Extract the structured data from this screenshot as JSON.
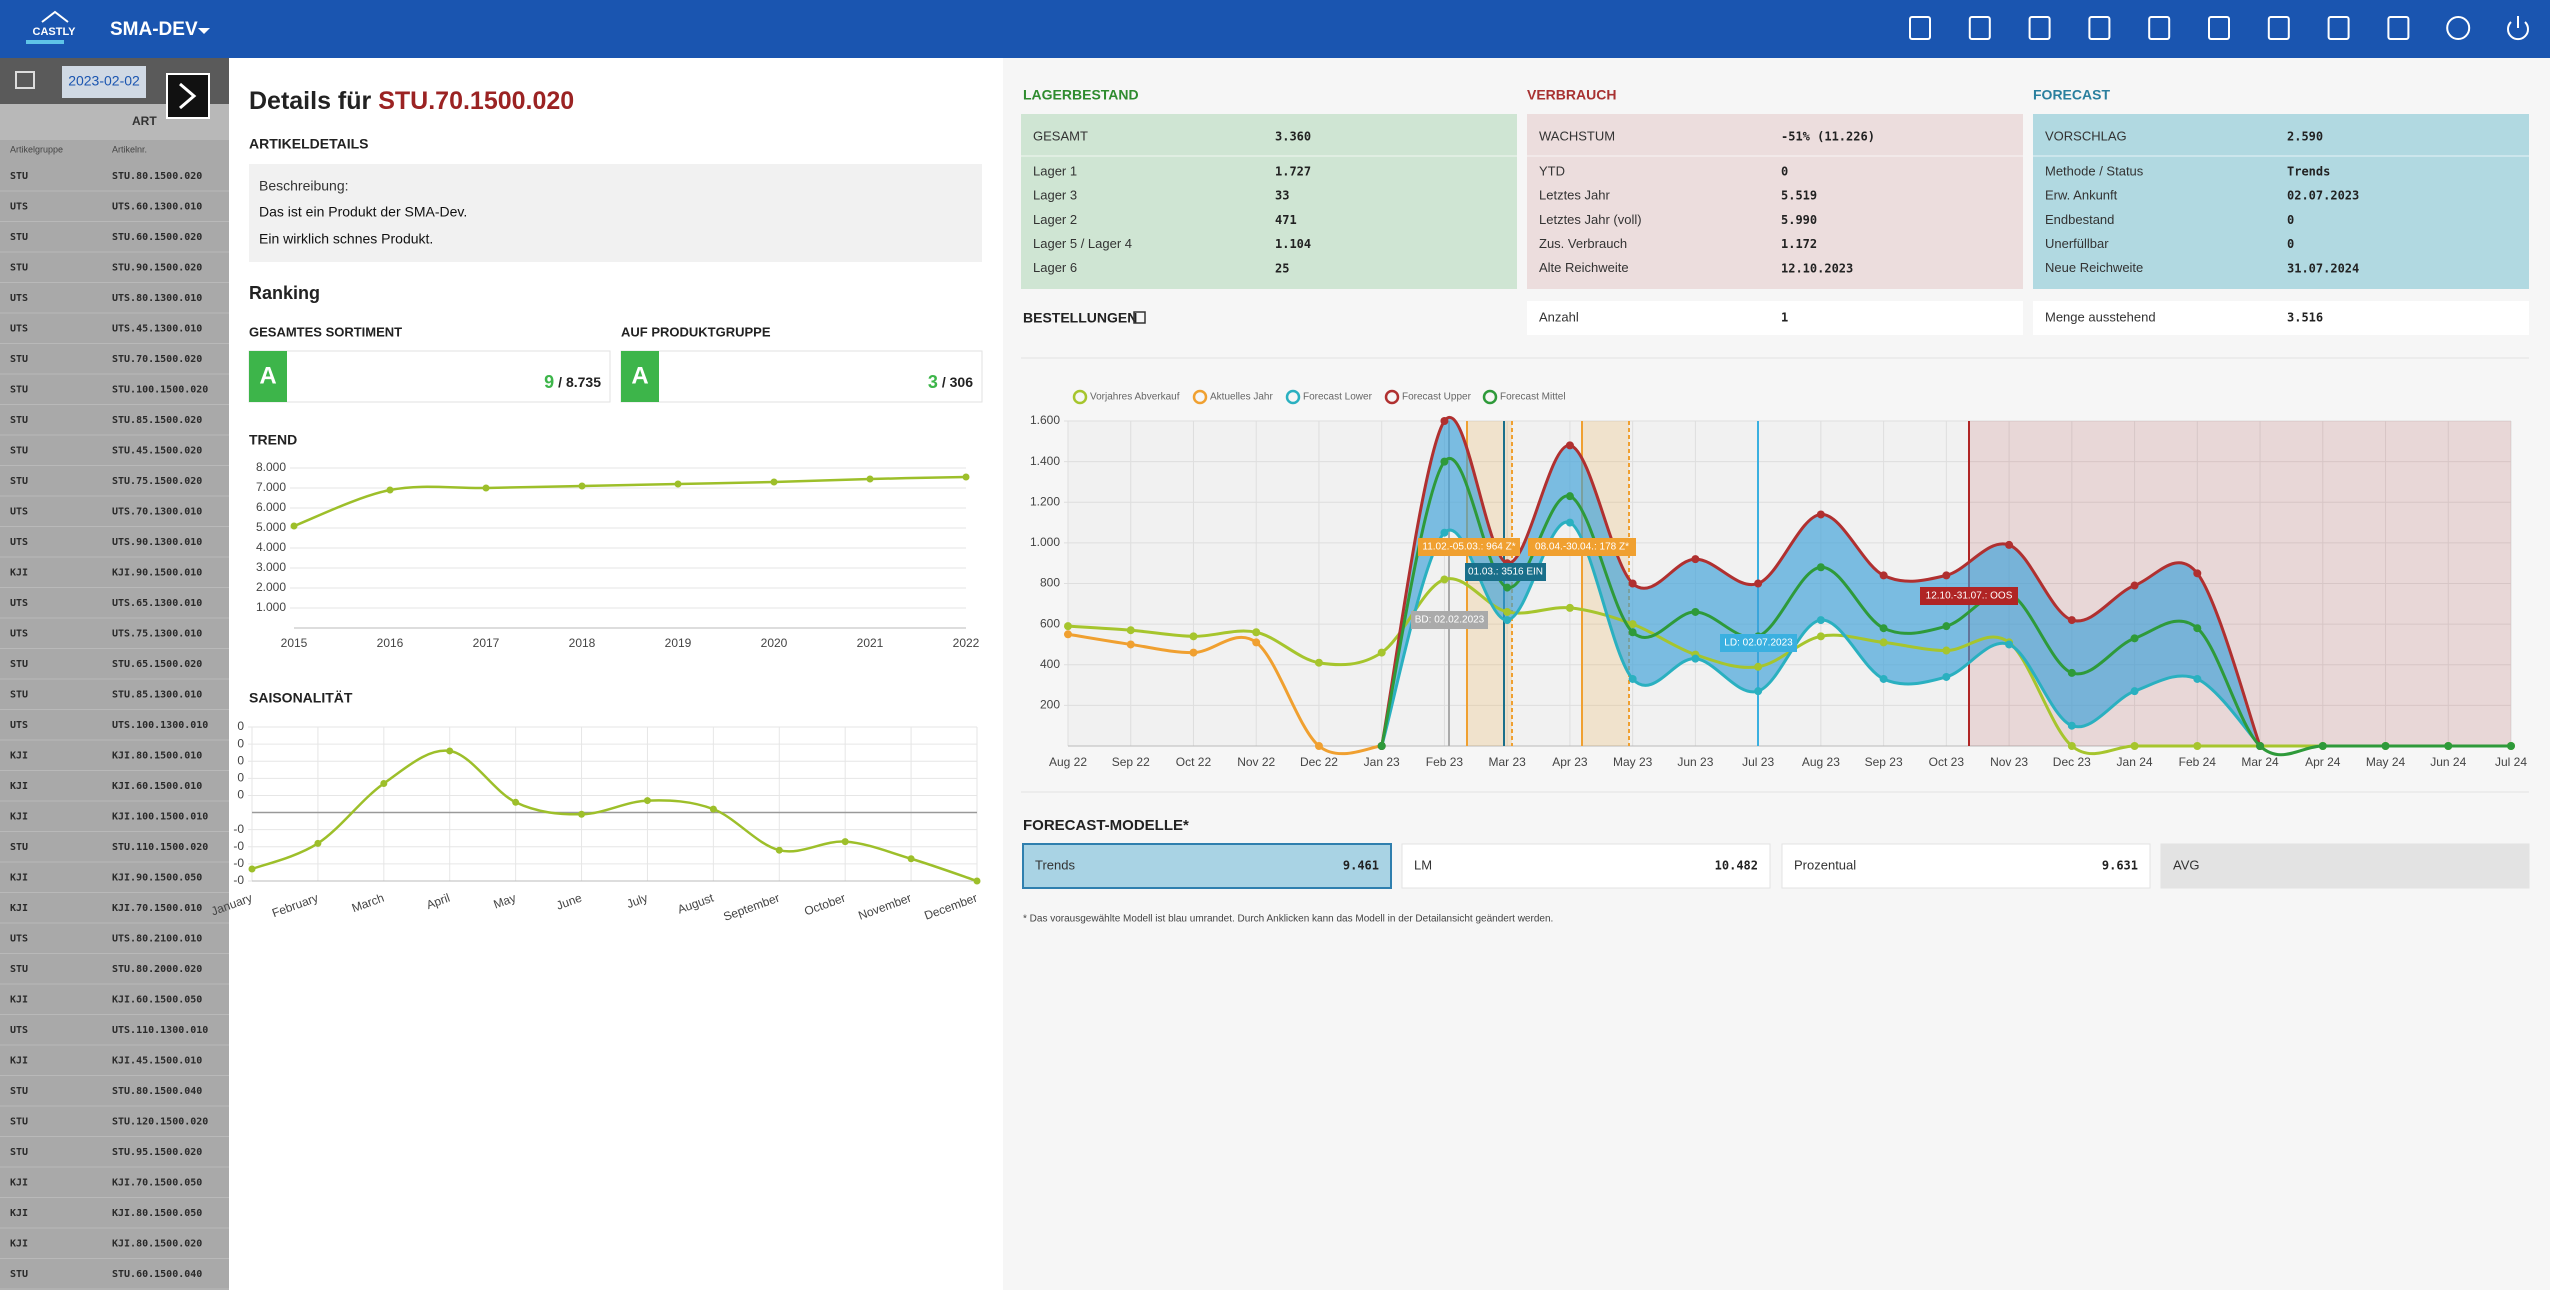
{
  "header": {
    "logo": "CASTLY",
    "environment": "SMA-DEV"
  },
  "sidebar": {
    "date": "2023-02-02",
    "heading": "ART",
    "columns": [
      "Artikelgruppe",
      "Artikelnr."
    ],
    "rows": [
      [
        "STU",
        "STU.80.1500.020"
      ],
      [
        "UTS",
        "UTS.60.1300.010"
      ],
      [
        "STU",
        "STU.60.1500.020"
      ],
      [
        "STU",
        "STU.90.1500.020"
      ],
      [
        "UTS",
        "UTS.80.1300.010"
      ],
      [
        "UTS",
        "UTS.45.1300.010"
      ],
      [
        "STU",
        "STU.70.1500.020"
      ],
      [
        "STU",
        "STU.100.1500.020"
      ],
      [
        "STU",
        "STU.85.1500.020"
      ],
      [
        "STU",
        "STU.45.1500.020"
      ],
      [
        "STU",
        "STU.75.1500.020"
      ],
      [
        "UTS",
        "UTS.70.1300.010"
      ],
      [
        "UTS",
        "UTS.90.1300.010"
      ],
      [
        "KJI",
        "KJI.90.1500.010"
      ],
      [
        "UTS",
        "UTS.65.1300.010"
      ],
      [
        "UTS",
        "UTS.75.1300.010"
      ],
      [
        "STU",
        "STU.65.1500.020"
      ],
      [
        "STU",
        "STU.85.1300.010"
      ],
      [
        "UTS",
        "UTS.100.1300.010"
      ],
      [
        "KJI",
        "KJI.80.1500.010"
      ],
      [
        "KJI",
        "KJI.60.1500.010"
      ],
      [
        "KJI",
        "KJI.100.1500.010"
      ],
      [
        "STU",
        "STU.110.1500.020"
      ],
      [
        "KJI",
        "KJI.90.1500.050"
      ],
      [
        "KJI",
        "KJI.70.1500.010"
      ],
      [
        "UTS",
        "UTS.80.2100.010"
      ],
      [
        "STU",
        "STU.80.2000.020"
      ],
      [
        "KJI",
        "KJI.60.1500.050"
      ],
      [
        "UTS",
        "UTS.110.1300.010"
      ],
      [
        "KJI",
        "KJI.45.1500.010"
      ],
      [
        "STU",
        "STU.80.1500.040"
      ],
      [
        "STU",
        "STU.120.1500.020"
      ],
      [
        "STU",
        "STU.95.1500.020"
      ],
      [
        "KJI",
        "KJI.70.1500.050"
      ],
      [
        "KJI",
        "KJI.80.1500.050"
      ],
      [
        "KJI",
        "KJI.80.1500.020"
      ],
      [
        "STU",
        "STU.60.1500.040"
      ]
    ]
  },
  "details": {
    "title": "Details für",
    "article": "STU.70.1500.020",
    "section": "ARTIKELDETAILS",
    "description_label": "Beschreibung:",
    "description": [
      "Das ist ein Produkt der SMA-Dev.",
      "Ein wirklich schnes Produkt."
    ]
  },
  "ranking": {
    "title": "Ranking",
    "items": [
      {
        "label": "GESAMTES SORTIMENT",
        "grade": "A",
        "rank": 9,
        "total": "/ 8.735"
      },
      {
        "label": "AUF PRODUKTGRUPPE",
        "grade": "A",
        "rank": 3,
        "total": "/ 306"
      }
    ]
  },
  "trend_chart": {
    "type": "line",
    "title": "TREND",
    "color": "#9dbf2a",
    "categories": [
      "2015",
      "2016",
      "2017",
      "2018",
      "2019",
      "2020",
      "2021",
      "2022"
    ],
    "values": [
      5100,
      6900,
      7000,
      7100,
      7200,
      7300,
      7450,
      7550
    ],
    "ylim": [
      0,
      8000
    ],
    "yticks": [
      {
        "value": 1000,
        "label": "1.000"
      },
      {
        "value": 2000,
        "label": "2.000"
      },
      {
        "value": 3000,
        "label": "3.000"
      },
      {
        "value": 4000,
        "label": "4.000"
      },
      {
        "value": 5000,
        "label": "5.000"
      },
      {
        "value": 6000,
        "label": "6.000"
      },
      {
        "value": 7000,
        "label": "7.000"
      },
      {
        "value": 8000,
        "label": "8.000"
      }
    ]
  },
  "season_chart": {
    "type": "line",
    "title": "SAISONALITÄT",
    "color": "#9dbf2a",
    "categories": [
      "January",
      "February",
      "March",
      "April",
      "May",
      "June",
      "July",
      "August",
      "September",
      "October",
      "November",
      "December"
    ],
    "values": [
      -0.33,
      -0.18,
      0.17,
      0.36,
      0.06,
      -0.01,
      0.07,
      0.02,
      -0.22,
      -0.17,
      -0.27,
      -0.4
    ],
    "ylim": [
      -0.4,
      0.5
    ],
    "yticks": [
      {
        "value": 0.5,
        "label": "0"
      },
      {
        "value": 0.4,
        "label": "0"
      },
      {
        "value": 0.3,
        "label": "0"
      },
      {
        "value": 0.2,
        "label": "0"
      },
      {
        "value": 0.1,
        "label": "0"
      },
      {
        "value": -0.1,
        "label": "-0"
      },
      {
        "value": -0.2,
        "label": "-0"
      },
      {
        "value": -0.3,
        "label": "-0"
      },
      {
        "value": -0.4,
        "label": "-0"
      }
    ]
  },
  "panels": [
    {
      "title": "LAGERBESTAND",
      "rows": [
        [
          "GESAMT",
          "3.360"
        ],
        [
          "Lager 1",
          "1.727"
        ],
        [
          "Lager 3",
          "33"
        ],
        [
          "Lager 2",
          "471"
        ],
        [
          "Lager 5 / Lager 4",
          "1.104"
        ],
        [
          "Lager 6",
          "25"
        ]
      ]
    },
    {
      "title": "VERBRAUCH",
      "rows": [
        [
          "WACHSTUM",
          "-51% (11.226)"
        ],
        [
          "YTD",
          "0"
        ],
        [
          "Letztes Jahr",
          "5.519"
        ],
        [
          "Letztes Jahr (voll)",
          "5.990"
        ],
        [
          "Zus. Verbrauch",
          "1.172"
        ],
        [
          "Alte Reichweite",
          "12.10.2023"
        ]
      ]
    },
    {
      "title": "FORECAST",
      "rows": [
        [
          "VORSCHLAG",
          "2.590"
        ],
        [
          "Methode / Status",
          "Trends"
        ],
        [
          "Erw. Ankunft",
          "02.07.2023"
        ],
        [
          "Endbestand",
          "0"
        ],
        [
          "Unerfüllbar",
          "0"
        ],
        [
          "Neue Reichweite",
          "31.07.2024"
        ]
      ]
    }
  ],
  "orders": {
    "title": "BESTELLUNGEN",
    "boxes": [
      [
        "Anzahl",
        "1"
      ],
      [
        "Menge ausstehend",
        "3.516"
      ]
    ]
  },
  "forecast_chart": {
    "type": "line",
    "categories": [
      "Aug 22",
      "Sep 22",
      "Oct 22",
      "Nov 22",
      "Dec 22",
      "Jan 23",
      "Feb 23",
      "Mar 23",
      "Apr 23",
      "May 23",
      "Jun 23",
      "Jul 23",
      "Aug 23",
      "Sep 23",
      "Oct 23",
      "Nov 23",
      "Dec 23",
      "Jan 24",
      "Feb 24",
      "Mar 24",
      "Apr 24",
      "May 24",
      "Jun 24",
      "Jul 24"
    ],
    "ylim": [
      0,
      1600
    ],
    "yticks": [
      200,
      400,
      600,
      800,
      {
        "value": 1000,
        "label": "1.000"
      },
      {
        "value": 1200,
        "label": "1.200"
      },
      {
        "value": 1400,
        "label": "1.400"
      },
      {
        "value": 1600,
        "label": "1.600"
      }
    ],
    "series": [
      {
        "name": "Vorjahres Abverkauf",
        "color": "#a6c52d",
        "values": [
          590,
          570,
          540,
          560,
          410,
          460,
          820,
          660,
          680,
          600,
          450,
          390,
          540,
          510,
          470,
          510,
          0,
          0,
          0,
          0,
          0,
          0,
          0,
          0
        ]
      },
      {
        "name": "Aktuelles Jahr",
        "color": "#f0a030",
        "values": [
          550,
          500,
          460,
          510,
          0,
          0,
          null,
          null,
          null,
          null,
          null,
          null,
          null,
          null,
          null,
          null,
          null,
          null,
          null,
          null,
          null,
          null,
          null,
          null
        ]
      },
      {
        "name": "Forecast Lower",
        "color": "#2ab0c0",
        "values": [
          null,
          null,
          null,
          null,
          null,
          0,
          1050,
          620,
          1100,
          330,
          430,
          270,
          620,
          330,
          340,
          500,
          100,
          270,
          330,
          0,
          null,
          null,
          null,
          null
        ]
      },
      {
        "name": "Forecast Upper",
        "color": "#b03030",
        "values": [
          null,
          null,
          null,
          null,
          null,
          0,
          1600,
          900,
          1480,
          800,
          920,
          800,
          1140,
          840,
          840,
          990,
          620,
          790,
          850,
          0,
          null,
          null,
          null,
          null
        ]
      },
      {
        "name": "Forecast Mittel",
        "color": "#2e9a3a",
        "values": [
          null,
          null,
          null,
          null,
          null,
          0,
          1400,
          780,
          1230,
          560,
          660,
          540,
          880,
          580,
          590,
          750,
          360,
          530,
          580,
          0,
          0,
          0,
          0,
          0
        ]
      }
    ],
    "annotations": [
      "11.02.-05.03.: 964 Z*",
      "08.04.-30.04.: 178 Z*",
      "01.03.: 3516 EIN",
      "BD: 02.02.2023",
      "LD: 02.07.2023",
      "12.10.-31.07.: OOS"
    ]
  },
  "models": {
    "title": "FORECAST-MODELLE*",
    "items": [
      [
        "Trends",
        "9.461"
      ],
      [
        "LM",
        "10.482"
      ],
      [
        "Prozentual",
        "9.631"
      ],
      [
        "AVG"
      ]
    ],
    "note": "* Das vorausgewählte Modell ist blau umrandet. Durch Anklicken kann das Modell in der Detailansicht geändert werden."
  }
}
